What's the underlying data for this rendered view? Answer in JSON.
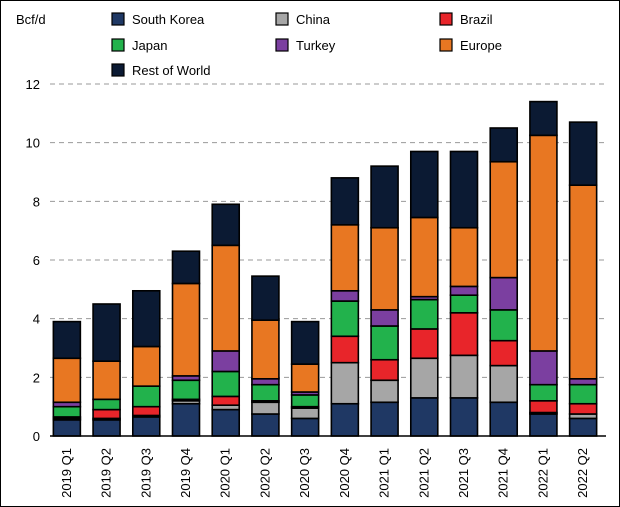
{
  "chart_data": {
    "type": "bar",
    "stacked": true,
    "title": "",
    "ylabel": "Bcf/d",
    "xlabel": "",
    "ylim": [
      0,
      12
    ],
    "yticks": [
      0,
      2,
      4,
      6,
      8,
      10,
      12
    ],
    "grid": "horizontal dashed",
    "legend_position": "top",
    "categories": [
      "2019 Q1",
      "2019 Q2",
      "2019 Q3",
      "2019 Q4",
      "2020 Q1",
      "2020 Q2",
      "2020 Q3",
      "2020 Q4",
      "2021 Q1",
      "2021 Q2",
      "2021 Q3",
      "2021 Q4",
      "2022 Q1",
      "2022 Q2"
    ],
    "series": [
      {
        "name": "South Korea",
        "color": "#1f3864",
        "values": [
          0.55,
          0.55,
          0.65,
          1.1,
          0.9,
          0.75,
          0.6,
          1.1,
          1.15,
          1.3,
          1.3,
          1.15,
          0.75,
          0.6
        ]
      },
      {
        "name": "China",
        "color": "#a6a6a6",
        "values": [
          0.05,
          0.05,
          0.05,
          0.1,
          0.15,
          0.4,
          0.35,
          1.4,
          0.75,
          1.35,
          1.45,
          1.25,
          0.05,
          0.15
        ]
      },
      {
        "name": "Brazil",
        "color": "#e8252a",
        "values": [
          0.05,
          0.3,
          0.3,
          0.05,
          0.3,
          0.05,
          0.05,
          0.9,
          0.7,
          1.0,
          1.45,
          0.85,
          0.4,
          0.35
        ]
      },
      {
        "name": "Japan",
        "color": "#22b24c",
        "values": [
          0.35,
          0.35,
          0.7,
          0.65,
          0.85,
          0.55,
          0.4,
          1.2,
          1.15,
          1.0,
          0.6,
          1.05,
          0.55,
          0.65
        ]
      },
      {
        "name": "Turkey",
        "color": "#7b3fa0",
        "values": [
          0.15,
          0.0,
          0.0,
          0.15,
          0.7,
          0.2,
          0.1,
          0.35,
          0.55,
          0.1,
          0.3,
          1.1,
          1.15,
          0.2
        ]
      },
      {
        "name": "Europe",
        "color": "#e87722",
        "values": [
          1.5,
          1.3,
          1.35,
          3.15,
          3.6,
          2.0,
          0.95,
          2.25,
          2.8,
          2.7,
          2.0,
          3.95,
          7.35,
          6.6
        ]
      },
      {
        "name": "Rest of World",
        "color": "#0b1a33",
        "values": [
          1.25,
          1.95,
          1.9,
          1.1,
          1.4,
          1.5,
          1.45,
          1.6,
          2.1,
          2.25,
          2.6,
          1.15,
          1.15,
          2.15
        ]
      }
    ],
    "legend_order": [
      "South Korea",
      "China",
      "Brazil",
      "Japan",
      "Turkey",
      "Europe",
      "Rest of World"
    ]
  }
}
